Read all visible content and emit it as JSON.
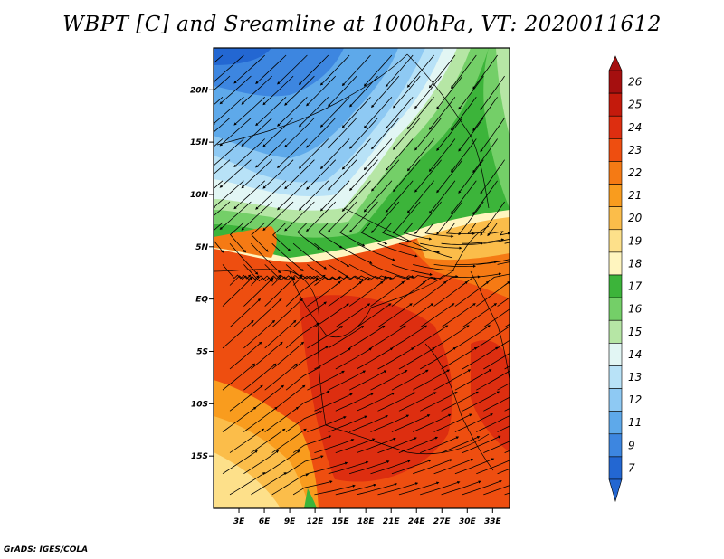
{
  "title": "WBPT [C] and Sreamline at 1000hPa, VT: 2020011612",
  "credit": "GrADS: IGES/COLA",
  "map": {
    "lon_range": [
      0,
      35
    ],
    "lat_range": [
      -20,
      24
    ],
    "lon_ticks": [
      {
        "value": 3,
        "label": "3E"
      },
      {
        "value": 6,
        "label": "6E"
      },
      {
        "value": 9,
        "label": "9E"
      },
      {
        "value": 12,
        "label": "12E"
      },
      {
        "value": 15,
        "label": "15E"
      },
      {
        "value": 18,
        "label": "18E"
      },
      {
        "value": 21,
        "label": "21E"
      },
      {
        "value": 24,
        "label": "24E"
      },
      {
        "value": 27,
        "label": "27E"
      },
      {
        "value": 30,
        "label": "30E"
      },
      {
        "value": 33,
        "label": "33E"
      }
    ],
    "lat_ticks": [
      {
        "value": 20,
        "label": "20N"
      },
      {
        "value": 15,
        "label": "15N"
      },
      {
        "value": 10,
        "label": "10N"
      },
      {
        "value": 5,
        "label": "5N"
      },
      {
        "value": 0,
        "label": "EQ"
      },
      {
        "value": -5,
        "label": "5S"
      },
      {
        "value": -10,
        "label": "10S"
      },
      {
        "value": -15,
        "label": "15S"
      }
    ]
  },
  "colorbar": {
    "levels": [
      {
        "label": "26",
        "color": "#a50f0f"
      },
      {
        "label": "25",
        "color": "#c41a0c"
      },
      {
        "label": "24",
        "color": "#dd2e10"
      },
      {
        "label": "23",
        "color": "#ee4e10"
      },
      {
        "label": "22",
        "color": "#f57a14"
      },
      {
        "label": "21",
        "color": "#f99c1e"
      },
      {
        "label": "20",
        "color": "#fbbd4a"
      },
      {
        "label": "19",
        "color": "#fde08a"
      },
      {
        "label": "18",
        "color": "#fff5bf"
      },
      {
        "label": "17",
        "color": "#3cb43a"
      },
      {
        "label": "16",
        "color": "#74cf68"
      },
      {
        "label": "15",
        "color": "#b6e6a5"
      },
      {
        "label": "14",
        "color": "#e2f6f4"
      },
      {
        "label": "13",
        "color": "#b8e2f7"
      },
      {
        "label": "12",
        "color": "#8ec9f3"
      },
      {
        "label": "11",
        "color": "#5ea9ea"
      },
      {
        "label": "9",
        "color": "#3d86e0"
      },
      {
        "label": "7",
        "color": "#2367d2"
      }
    ]
  }
}
